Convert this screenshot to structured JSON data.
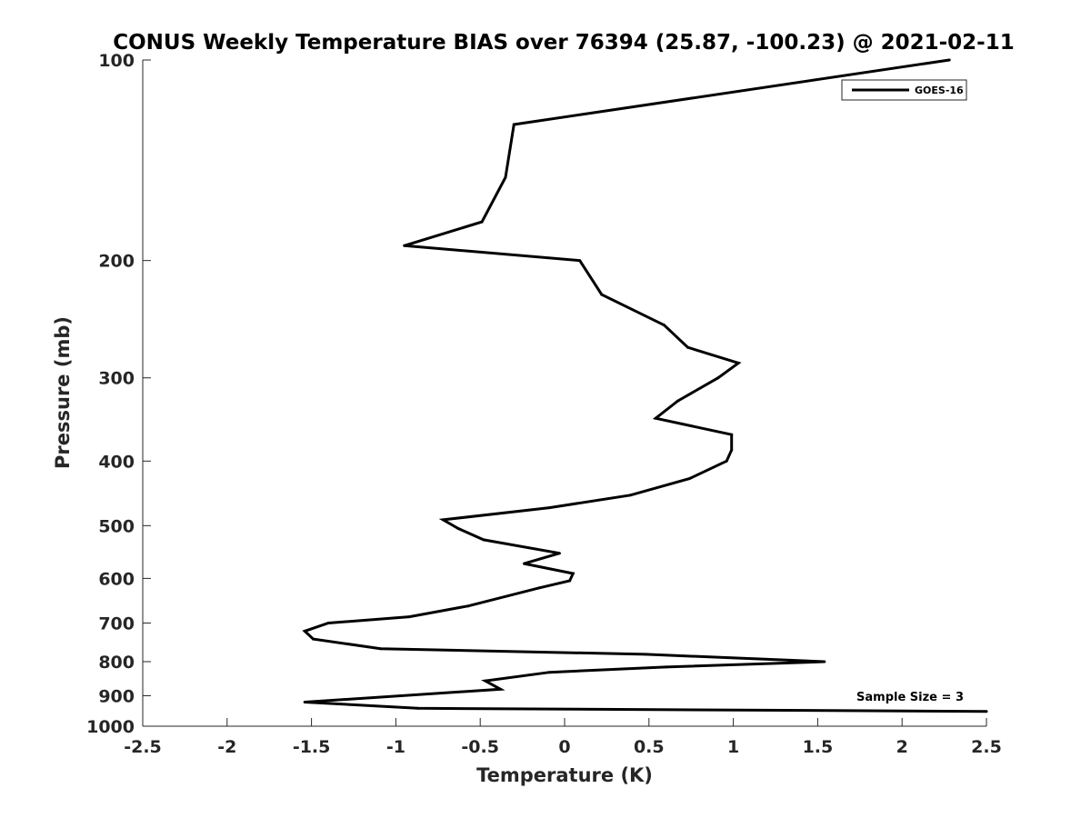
{
  "chart_data": {
    "type": "line",
    "title": "CONUS Weekly Temperature BIAS over 76394 (25.87, -100.23) @ 2021-02-11",
    "xlabel": "Temperature (K)",
    "ylabel": "Pressure (mb)",
    "xlim": [
      -2.5,
      2.5
    ],
    "ylim": [
      100,
      1000
    ],
    "y_scale": "log",
    "y_reversed": true,
    "x_ticks": [
      "-2.5",
      "-2",
      "-1.5",
      "-1",
      "-0.5",
      "0",
      "0.5",
      "1",
      "1.5",
      "2",
      "2.5"
    ],
    "y_ticks": [
      "100",
      "200",
      "300",
      "400",
      "500",
      "600",
      "700",
      "800",
      "900",
      "1000"
    ],
    "grid": false,
    "legend_position": "top-right",
    "series": [
      {
        "name": "GOES-16",
        "color": "#000000",
        "points": [
          {
            "x": 2.28,
            "y": 100
          },
          {
            "x": -0.3,
            "y": 125
          },
          {
            "x": -0.35,
            "y": 150
          },
          {
            "x": -0.49,
            "y": 175
          },
          {
            "x": -0.95,
            "y": 190
          },
          {
            "x": 0.09,
            "y": 200
          },
          {
            "x": 0.22,
            "y": 225
          },
          {
            "x": 0.59,
            "y": 250
          },
          {
            "x": 0.73,
            "y": 270
          },
          {
            "x": 1.03,
            "y": 285
          },
          {
            "x": 0.91,
            "y": 300
          },
          {
            "x": 0.67,
            "y": 325
          },
          {
            "x": 0.54,
            "y": 345
          },
          {
            "x": 0.99,
            "y": 365
          },
          {
            "x": 0.99,
            "y": 385
          },
          {
            "x": 0.96,
            "y": 400
          },
          {
            "x": 0.74,
            "y": 425
          },
          {
            "x": 0.39,
            "y": 450
          },
          {
            "x": -0.09,
            "y": 470
          },
          {
            "x": -0.72,
            "y": 490
          },
          {
            "x": -0.63,
            "y": 505
          },
          {
            "x": -0.48,
            "y": 525
          },
          {
            "x": -0.03,
            "y": 550
          },
          {
            "x": -0.24,
            "y": 570
          },
          {
            "x": 0.05,
            "y": 590
          },
          {
            "x": 0.03,
            "y": 605
          },
          {
            "x": -0.15,
            "y": 620
          },
          {
            "x": -0.57,
            "y": 660
          },
          {
            "x": -0.92,
            "y": 685
          },
          {
            "x": -1.4,
            "y": 700
          },
          {
            "x": -1.54,
            "y": 720
          },
          {
            "x": -1.49,
            "y": 740
          },
          {
            "x": -1.09,
            "y": 765
          },
          {
            "x": 0.48,
            "y": 780
          },
          {
            "x": 1.54,
            "y": 800
          },
          {
            "x": 0.6,
            "y": 815
          },
          {
            "x": -0.09,
            "y": 830
          },
          {
            "x": -0.47,
            "y": 855
          },
          {
            "x": -0.38,
            "y": 880
          },
          {
            "x": -1.54,
            "y": 920
          },
          {
            "x": -0.87,
            "y": 940
          },
          {
            "x": 2.5,
            "y": 950
          }
        ]
      }
    ],
    "annotations": [
      {
        "text": "Sample Size = 3"
      }
    ]
  }
}
